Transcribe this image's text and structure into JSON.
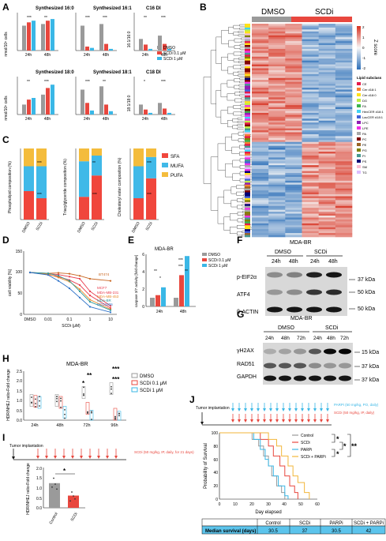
{
  "panel_letters": [
    "A",
    "B",
    "C",
    "D",
    "E",
    "F",
    "G",
    "H",
    "I",
    "J"
  ],
  "panel_a": {
    "titles": [
      "Synthesized 16:0",
      "Synthesized 16:1",
      "C16 DI",
      "Synthesized 18:0",
      "Synthesized 18:1",
      "C18 DI"
    ],
    "y_labels": [
      "nmol/10⁶ cells",
      "nmol/10⁶ cells",
      "16:1/16:0",
      "nmol/10⁶ cells",
      "nmol/10⁶ cells",
      "18:1/18:0"
    ],
    "x_ticks": [
      "24h",
      "48h"
    ],
    "legend": [
      "DMSO",
      "SCDi 0.1 μM",
      "SCDi 1 μM"
    ],
    "stars": [
      "***",
      "**",
      "***",
      "***",
      "**",
      "***",
      "**",
      "***",
      "***",
      "**",
      "*",
      "***"
    ],
    "colors": {
      "dmso": "#9a9a9a",
      "low": "#e8473e",
      "high": "#3ab7e6"
    }
  },
  "panel_b": {
    "groups": [
      "DMSO",
      "SCDi"
    ],
    "colorbar_label": "Z score",
    "colorbar_ticks": [
      "2",
      "1",
      "0",
      "-1",
      "-2"
    ],
    "lipid_title": "Lipid subclass",
    "lipid_classes": [
      "CE",
      "Cer d18:1",
      "Cer d18:0",
      "DG",
      "FA",
      "HexCER d18:1",
      "LacCER d18:1",
      "LPC",
      "LPE",
      "PA",
      "PC",
      "PE",
      "PG",
      "PI",
      "PS",
      "SM",
      "TG"
    ],
    "lipid_colors": [
      "#e6194b",
      "#f58231",
      "#ffe119",
      "#bfef45",
      "#3cb44b",
      "#42d4f4",
      "#4363d8",
      "#911eb4",
      "#f032e6",
      "#a9a9a9",
      "#800000",
      "#9a6324",
      "#808000",
      "#469990",
      "#000075",
      "#fabed4",
      "#dcbeff"
    ]
  },
  "panel_c": {
    "y_labels": [
      "Phospholipid composition (%)",
      "Triacylglyceride composition (%)",
      "Cholesteryl ester composition (%)"
    ],
    "x_ticks": [
      "DMSO",
      "SCDi"
    ],
    "legend": [
      "SFA",
      "MUFA",
      "PUFA"
    ],
    "stars": [
      "***",
      "***",
      "**",
      "***",
      "***",
      "***",
      "***",
      "***"
    ],
    "colors": {
      "sfa": "#f0463c",
      "mufa": "#40b9e8",
      "pufa": "#f4bc3c"
    }
  },
  "panel_d": {
    "ylabel": "cell viability [%]",
    "xlabel": "SCDi (μM)",
    "x_ticks": [
      "DMSO",
      "0.01",
      "0.1",
      "1",
      "10"
    ],
    "y_ticks": [
      "0",
      "50",
      "100",
      "150"
    ],
    "lines": [
      "BT474",
      "MCF7",
      "MDA-MB-231",
      "MDA-MB-453",
      "MDA-BR",
      "HCC1806"
    ],
    "line_colors": [
      "#c8641e",
      "#e8394a",
      "#e8394a",
      "#e98a2a",
      "#2c9a9a",
      "#2e72c8"
    ]
  },
  "panel_e": {
    "title": "MDA-BR",
    "ylabel": "caspase 3/7 activity [fold change]",
    "x_ticks": [
      "24h",
      "48h"
    ],
    "y_ticks": [
      "0",
      "2",
      "4",
      "6"
    ],
    "legend": [
      "DMSO",
      "SCDi 0.1 μM",
      "SCDi 1 μM"
    ],
    "stars": [
      "**",
      "***",
      "*",
      "***",
      "**"
    ]
  },
  "panel_f": {
    "title": "MDA-BR",
    "groups": [
      "DMSO",
      "SCDi"
    ],
    "times": [
      "24h",
      "48h",
      "24h",
      "48h"
    ],
    "rows": [
      "p-EIF2α",
      "ATF4",
      "β-ACTIN"
    ],
    "kda": [
      "37 kDa",
      "50 kDa",
      "50 kDa"
    ]
  },
  "panel_g": {
    "title": "MDA-BR",
    "groups": [
      "DMSO",
      "SCDi"
    ],
    "times": [
      "24h",
      "48h",
      "72h",
      "24h",
      "48h",
      "72h"
    ],
    "rows": [
      "γH2AX",
      "RAD51",
      "GAPDH"
    ],
    "kda": [
      "15 kDa",
      "37 kDa",
      "37 kDa"
    ]
  },
  "panel_h": {
    "title": "MDA-BR",
    "ylabel": "HDR/NHEJ ratio-Fold change",
    "x_ticks": [
      "24h",
      "48h",
      "72h",
      "96h"
    ],
    "y_ticks": [
      "0.0",
      "0.5",
      "1.0",
      "1.5",
      "2.0",
      "2.5"
    ],
    "legend": [
      "DMSO",
      "SCDi 0.1 μM",
      "SCDi 1 μM"
    ],
    "stars": [
      "**",
      "*",
      "***",
      "***"
    ]
  },
  "panel_i": {
    "implant_label": "Tumor implantation",
    "treat_label": "SCDi (50 mg/kg, IP, daily, for 21 days)",
    "ylabel": "HDR/NHEJ ratio-Fold change",
    "x_ticks": [
      "Control",
      "SCDi"
    ],
    "y_ticks": [
      "0.0",
      "0.5",
      "1.0",
      "1.5",
      "2.0"
    ],
    "star": "*"
  },
  "panel_j": {
    "implant_label": "Tumor implantation",
    "parp_label": "PARPi (50 mg/kg, PO, daily)",
    "scd_label": "SCDi (50 mg/kg, IP, daily)",
    "ylabel": "Probability of Survival",
    "xlabel": "Day elapsed",
    "x_ticks": [
      "0",
      "10",
      "20",
      "30",
      "40",
      "50",
      "60"
    ],
    "y_ticks": [
      "0",
      "20",
      "40",
      "60",
      "80",
      "100"
    ],
    "legend": [
      "Control",
      "SCDi",
      "PARPi",
      "SCDi + PARPi"
    ],
    "legend_colors": [
      "#9a9a9a",
      "#e8473e",
      "#3ab7e6",
      "#f2b63a"
    ],
    "stars": [
      "*",
      "*",
      "*",
      "**"
    ],
    "table_header": [
      "",
      "Control",
      "SCDi",
      "PARPi",
      "SCDi + PARPi"
    ],
    "table_row": [
      "Median survival (days)",
      "30.5",
      "37",
      "30.5",
      "42"
    ]
  }
}
